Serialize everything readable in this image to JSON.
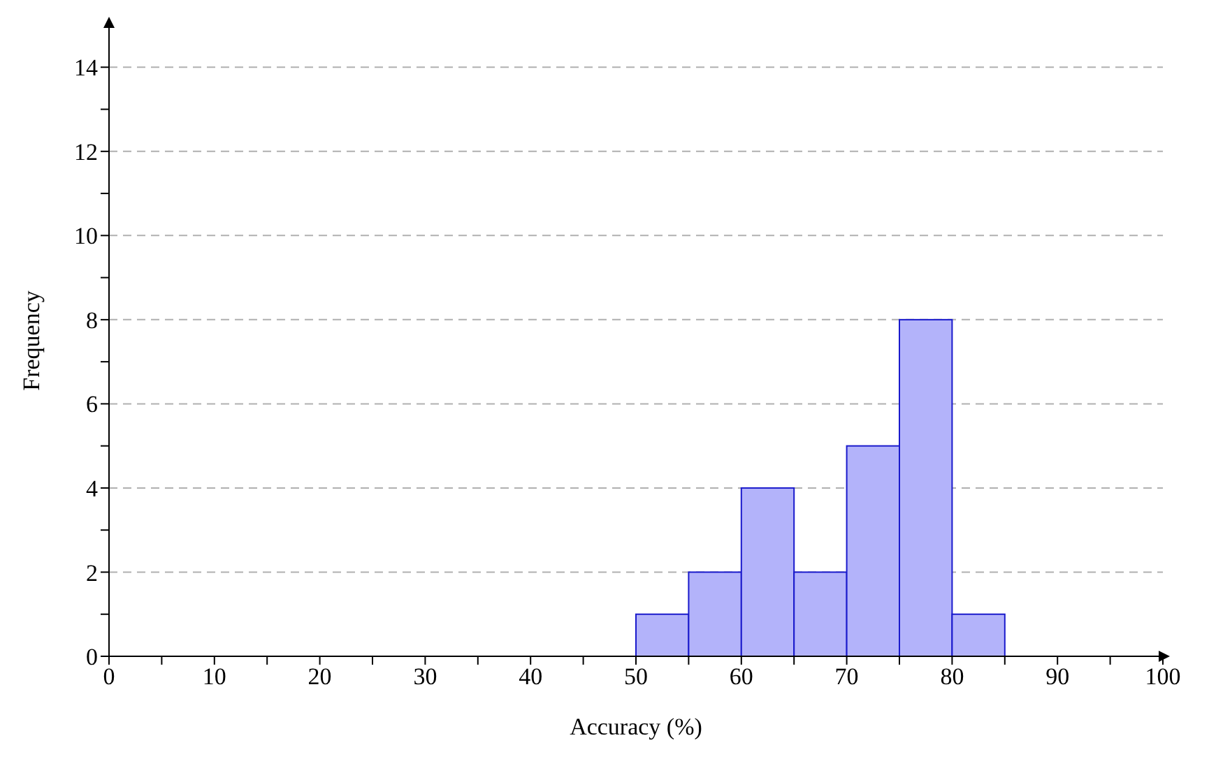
{
  "chart_data": {
    "type": "histogram",
    "xlabel": "Accuracy (%)",
    "ylabel": "Frequency",
    "bins": [
      50,
      55,
      60,
      65,
      70,
      75,
      80,
      85
    ],
    "values": [
      1,
      2,
      4,
      2,
      5,
      8,
      1
    ],
    "color": "#b3b3fa",
    "xlim": [
      0,
      100
    ],
    "xticks": [
      0,
      {
        "value": 5,
        "label": null
      },
      10,
      {
        "value": 15,
        "label": null
      },
      20,
      {
        "value": 25,
        "label": null
      },
      30,
      {
        "value": 35,
        "label": null
      },
      40,
      {
        "value": 45,
        "label": null
      },
      50,
      {
        "value": 55,
        "label": null
      },
      60,
      {
        "value": 65,
        "label": null
      },
      70,
      {
        "value": 75,
        "label": null
      },
      80,
      {
        "value": 85,
        "label": null
      },
      90,
      {
        "value": 95,
        "label": null
      },
      100
    ],
    "ylim": [
      0,
      15
    ],
    "yticks": [
      0,
      {
        "value": 1,
        "label": null
      },
      2,
      {
        "value": 3,
        "label": null
      },
      4,
      {
        "value": 5,
        "label": null
      },
      6,
      {
        "value": 7,
        "label": null
      },
      8,
      {
        "value": 9,
        "label": null
      },
      10,
      {
        "value": 11,
        "label": null
      },
      12,
      {
        "value": 13,
        "label": null
      },
      14
    ],
    "grid": "y"
  }
}
